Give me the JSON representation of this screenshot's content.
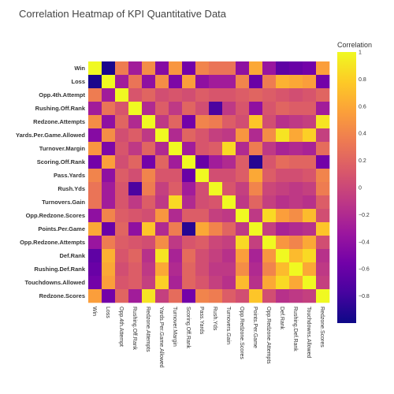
{
  "chart_data": {
    "type": "heatmap",
    "title": "Correlation Heatmap of KPI Quantitative Data",
    "colorbar_title": "Correlation",
    "colorscale": [
      "#0d0887",
      "#46039f",
      "#7201a8",
      "#9c179e",
      "#bd3786",
      "#d8576b",
      "#ed7953",
      "#fb9f3a",
      "#fdca26",
      "#f0f921"
    ],
    "zlim": [
      -1,
      1
    ],
    "colorbar_ticks": [
      1,
      0.8,
      0.6,
      0.4,
      0.2,
      0,
      -0.2,
      -0.4,
      -0.6,
      -0.8
    ],
    "colorbar_tick_labels": [
      "1",
      "0.8",
      "0.6",
      "0.4",
      "0.2",
      "0",
      "−0.2",
      "−0.4",
      "−0.6",
      "−0.8"
    ],
    "labels": [
      "Win",
      "Loss",
      "Opp.4th.Attempt",
      "Rushing.Off.Rank",
      "Redzone.Attempts",
      "Yards.Per.Game.Allowed",
      "Turnover.Margin",
      "Scoring.Off.Rank",
      "Pass.Yards",
      "Rush.Yds",
      "Turnovers.Gain",
      "Opp.Redzone.Scores",
      "Points.Per.Game",
      "Opp.Redzone.Attempts",
      "Def.Rank",
      "Rushing.Def.Rank",
      "Touchdowns.Allowed",
      "Redzone.Scores"
    ],
    "x_tick_labels": [
      "Win",
      "Loss",
      "Opp.4th.Attempt",
      "Rushing.Off.Rank",
      "Redzone.Attempts",
      "Yards.Per.Game.Allowed",
      "Turnover.Margin",
      "Scoring.Off.Rank",
      "Pass.Yards",
      "Rush.Yds",
      "Turnovers.Gain",
      "Opp.Redzone.Scores",
      "Points.Per.Game",
      "Opp.Redzone.Attempts",
      "Def.Rank",
      "Rushing.Def.Rank",
      "Touchdowns.Allowed",
      "Redzone.Scores"
    ],
    "z": [
      [
        1.0,
        -0.95,
        0.35,
        -0.3,
        0.45,
        -0.45,
        0.5,
        -0.55,
        0.4,
        0.3,
        0.3,
        -0.4,
        0.6,
        -0.35,
        -0.65,
        -0.6,
        -0.55,
        0.55
      ],
      [
        -0.95,
        1.0,
        -0.3,
        0.3,
        -0.4,
        0.45,
        -0.5,
        0.55,
        -0.4,
        -0.3,
        -0.3,
        0.4,
        -0.6,
        0.35,
        0.65,
        0.6,
        0.55,
        -0.55
      ],
      [
        0.35,
        -0.3,
        1.0,
        0.1,
        0.2,
        0.05,
        0.1,
        0.05,
        0.15,
        0.1,
        0.1,
        0.15,
        0.2,
        0.15,
        0.1,
        0.05,
        0.1,
        0.2
      ],
      [
        -0.3,
        0.3,
        0.1,
        1.0,
        -0.2,
        0.15,
        -0.1,
        0.2,
        0.05,
        -0.75,
        -0.1,
        0.1,
        -0.4,
        0.1,
        0.2,
        0.15,
        0.15,
        -0.3
      ],
      [
        0.45,
        -0.4,
        0.2,
        -0.2,
        1.0,
        -0.1,
        0.2,
        -0.55,
        0.4,
        0.35,
        0.15,
        0.05,
        0.75,
        0.05,
        -0.15,
        -0.1,
        -0.05,
        0.9
      ],
      [
        -0.45,
        0.45,
        0.05,
        0.15,
        -0.1,
        1.0,
        -0.2,
        0.2,
        0.1,
        -0.05,
        -0.1,
        0.5,
        -0.2,
        0.45,
        0.9,
        0.6,
        0.8,
        -0.05
      ],
      [
        0.5,
        -0.5,
        0.1,
        -0.1,
        0.2,
        -0.2,
        1.0,
        -0.3,
        0.1,
        0.15,
        0.85,
        -0.2,
        0.35,
        -0.1,
        -0.25,
        -0.2,
        -0.25,
        0.25
      ],
      [
        -0.55,
        0.55,
        0.05,
        0.2,
        -0.55,
        0.2,
        -0.3,
        1.0,
        -0.6,
        -0.3,
        -0.2,
        0.15,
        -0.9,
        0.1,
        0.25,
        0.2,
        0.2,
        -0.55
      ],
      [
        0.4,
        -0.4,
        0.15,
        0.05,
        0.4,
        0.1,
        0.1,
        -0.6,
        1.0,
        0.05,
        0.05,
        0.15,
        0.6,
        0.15,
        0.05,
        0.05,
        0.1,
        0.4
      ],
      [
        0.3,
        -0.3,
        0.1,
        -0.75,
        0.35,
        -0.05,
        0.15,
        -0.3,
        0.05,
        1.0,
        0.1,
        -0.05,
        0.4,
        0.0,
        -0.05,
        -0.1,
        -0.05,
        0.35
      ],
      [
        0.3,
        -0.3,
        0.1,
        -0.1,
        0.15,
        -0.1,
        0.85,
        -0.2,
        0.05,
        0.1,
        1.0,
        -0.1,
        0.2,
        -0.05,
        -0.15,
        -0.1,
        -0.15,
        0.15
      ],
      [
        -0.4,
        0.4,
        0.15,
        0.1,
        0.05,
        0.5,
        -0.2,
        0.15,
        0.15,
        -0.05,
        -0.1,
        1.0,
        -0.1,
        0.85,
        0.55,
        0.45,
        0.7,
        0.05
      ],
      [
        0.6,
        -0.6,
        0.2,
        -0.4,
        0.75,
        -0.2,
        0.35,
        -0.9,
        0.6,
        0.4,
        0.2,
        -0.1,
        1.0,
        -0.05,
        -0.25,
        -0.2,
        -0.15,
        0.75
      ],
      [
        -0.35,
        0.35,
        0.15,
        0.1,
        0.05,
        0.45,
        -0.1,
        0.1,
        0.15,
        0.0,
        -0.05,
        0.85,
        -0.05,
        1.0,
        0.5,
        0.4,
        0.6,
        0.05
      ],
      [
        -0.65,
        0.65,
        0.1,
        0.2,
        -0.15,
        0.9,
        -0.25,
        0.25,
        0.05,
        -0.05,
        -0.15,
        0.55,
        -0.25,
        0.5,
        1.0,
        0.7,
        0.85,
        -0.15
      ],
      [
        -0.6,
        0.6,
        0.05,
        0.15,
        -0.1,
        0.6,
        -0.2,
        0.2,
        0.05,
        -0.1,
        -0.1,
        0.45,
        -0.2,
        0.4,
        0.7,
        1.0,
        0.6,
        -0.1
      ],
      [
        -0.55,
        0.55,
        0.1,
        0.15,
        -0.05,
        0.8,
        -0.25,
        0.2,
        0.1,
        -0.05,
        -0.15,
        0.7,
        -0.15,
        0.6,
        0.85,
        0.6,
        1.0,
        -0.05
      ],
      [
        0.55,
        -0.55,
        0.2,
        -0.3,
        0.9,
        -0.05,
        0.25,
        -0.55,
        0.4,
        0.35,
        0.15,
        0.05,
        0.75,
        0.05,
        -0.15,
        -0.1,
        -0.05,
        1.0
      ]
    ]
  }
}
